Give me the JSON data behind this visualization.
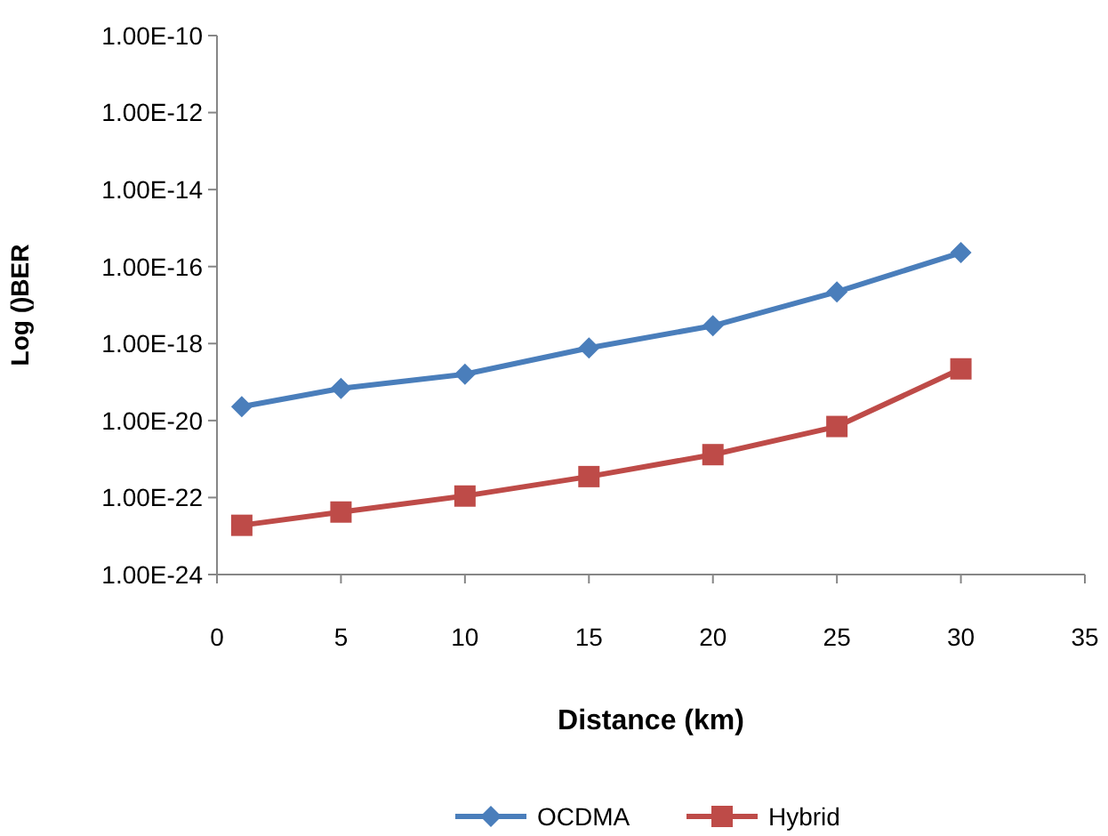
{
  "chart_data": {
    "type": "line",
    "xlabel": "Distance (km)",
    "ylabel": "Log ()BER",
    "log": "y",
    "grid": false,
    "legend": "bottom",
    "x": [
      1,
      5,
      10,
      15,
      20,
      25,
      30
    ],
    "xlim": [
      0,
      35
    ],
    "xticks": [
      0,
      5,
      10,
      15,
      20,
      25,
      30,
      35
    ],
    "ylim": [
      1e-24,
      1e-10
    ],
    "yticks": [
      {
        "value": 1e-24,
        "label": "1.00E-24"
      },
      {
        "value": 1e-22,
        "label": "1.00E-22"
      },
      {
        "value": 1e-20,
        "label": "1.00E-20"
      },
      {
        "value": 1e-18,
        "label": "1.00E-18"
      },
      {
        "value": 1e-16,
        "label": "1.00E-16"
      },
      {
        "value": 1e-14,
        "label": "1.00E-14"
      },
      {
        "value": 1e-12,
        "label": "1.00E-12"
      },
      {
        "value": 1e-10,
        "label": "1.00E-10"
      }
    ],
    "series": [
      {
        "name": "OCDMA",
        "color": "#4a7ebb",
        "marker": "diamond",
        "values": [
          2.3e-20,
          6.8e-20,
          1.6e-19,
          7.7e-19,
          2.9e-18,
          2.2e-17,
          2.3e-16
        ]
      },
      {
        "name": "Hybrid",
        "color": "#be4b48",
        "marker": "square",
        "values": [
          1.9e-23,
          4.2e-23,
          1.1e-22,
          3.5e-22,
          1.3e-21,
          7e-21,
          2.2e-19
        ]
      }
    ]
  }
}
